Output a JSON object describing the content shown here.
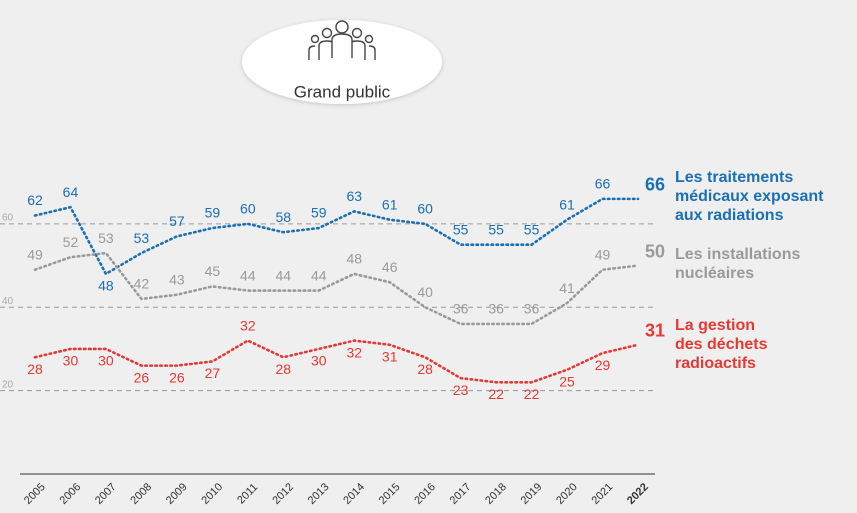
{
  "badge": {
    "label": "Grand public"
  },
  "chart_data": {
    "type": "line",
    "x": [
      "2005",
      "2006",
      "2007",
      "2008",
      "2009",
      "2010",
      "2011",
      "2012",
      "2013",
      "2014",
      "2015",
      "2016",
      "2017",
      "2018",
      "2019",
      "2020",
      "2021",
      "2022"
    ],
    "ylim": [
      0,
      80
    ],
    "yticks": [
      20,
      40,
      60
    ],
    "grid": true,
    "series": [
      {
        "name": "Les traitements\nmédicaux exposant\naux radiations",
        "color": "#1a6fb5",
        "values": [
          62,
          64,
          48,
          53,
          57,
          59,
          60,
          58,
          59,
          63,
          61,
          60,
          55,
          55,
          55,
          61,
          66,
          66
        ]
      },
      {
        "name": "Les installations\nnucléaires",
        "color": "#9a9a9a",
        "values": [
          49,
          52,
          53,
          42,
          43,
          45,
          44,
          44,
          44,
          48,
          46,
          40,
          36,
          36,
          36,
          41,
          49,
          50
        ]
      },
      {
        "name": "La gestion\ndes déchets\nradioactifs",
        "color": "#e53935",
        "values": [
          28,
          30,
          30,
          26,
          26,
          27,
          32,
          28,
          30,
          32,
          31,
          28,
          23,
          22,
          22,
          25,
          29,
          31
        ]
      }
    ]
  }
}
